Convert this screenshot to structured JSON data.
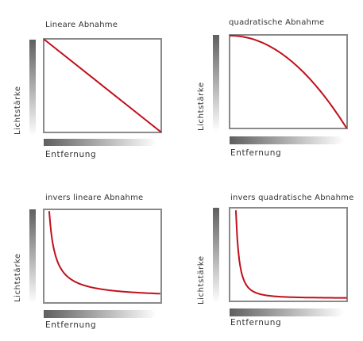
{
  "panels": [
    {
      "id": "linear",
      "title": "Lineare Abnahme",
      "y_label": "Lichtstärke",
      "x_label": "Entfernung"
    },
    {
      "id": "quadratic",
      "title": "quadratische Abnahme",
      "y_label": "Lichtstärke",
      "x_label": "Entfernung"
    },
    {
      "id": "inverse-linear",
      "title": "invers lineare Abnahme",
      "y_label": "Lichtstärke",
      "x_label": "Entfernung"
    },
    {
      "id": "inverse-quadratic",
      "title": "invers quadratische Abnahme",
      "y_label": "Lichtstärke",
      "x_label": "Entfernung"
    }
  ],
  "colors": {
    "curve": "#c0101c",
    "frame": "#8a8a8a",
    "gradient_dark": "#5f5f5f",
    "gradient_light": "#ffffff"
  }
}
